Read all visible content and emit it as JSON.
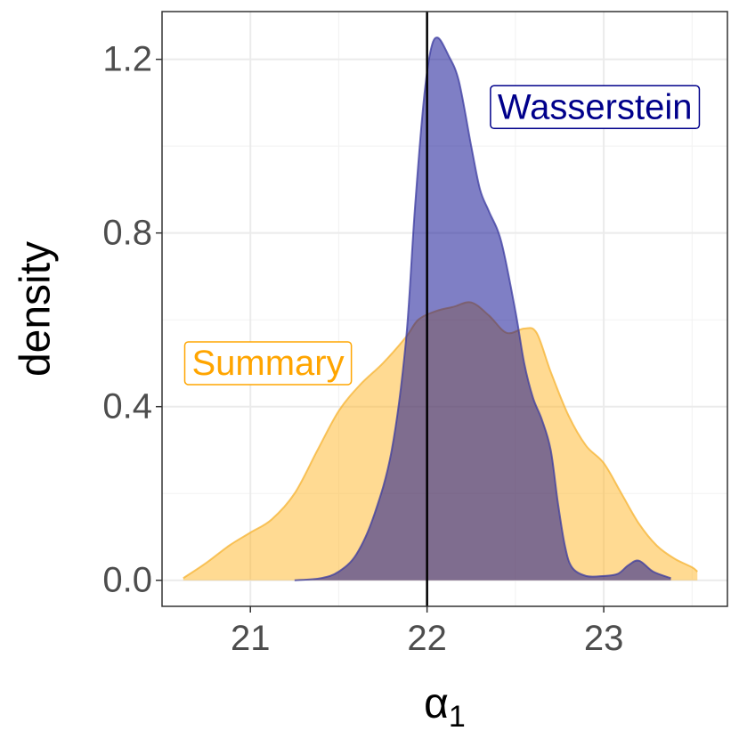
{
  "chart_data": {
    "type": "area",
    "xlabel": "α",
    "xlabel_subscript": "1",
    "ylabel": "density",
    "xlim": [
      20.5,
      23.7
    ],
    "ylim": [
      -0.06,
      1.31
    ],
    "x_ticks": [
      21,
      22,
      23
    ],
    "x_tick_labels": [
      "21",
      "22",
      "23"
    ],
    "y_ticks": [
      0.0,
      0.4,
      0.8,
      1.2
    ],
    "y_tick_labels": [
      "0.0",
      "0.4",
      "0.8",
      "1.2"
    ],
    "grid": true,
    "vline": 22.0,
    "series": [
      {
        "name": "Summary",
        "fill": "#FFB625",
        "stroke": "#F5B331",
        "label_color": "#FFA500",
        "label_at": [
          21.1,
          0.5
        ],
        "x": [
          20.62,
          20.75,
          20.88,
          21.0,
          21.12,
          21.25,
          21.38,
          21.5,
          21.62,
          21.75,
          21.88,
          21.95,
          22.05,
          22.15,
          22.25,
          22.35,
          22.45,
          22.55,
          22.62,
          22.7,
          22.8,
          22.9,
          23.0,
          23.1,
          23.2,
          23.3,
          23.4,
          23.5,
          23.53
        ],
        "y": [
          0.005,
          0.04,
          0.08,
          0.11,
          0.14,
          0.2,
          0.3,
          0.39,
          0.45,
          0.5,
          0.56,
          0.6,
          0.62,
          0.63,
          0.64,
          0.61,
          0.57,
          0.58,
          0.57,
          0.48,
          0.38,
          0.31,
          0.27,
          0.2,
          0.13,
          0.08,
          0.05,
          0.03,
          0.02
        ]
      },
      {
        "name": "Wasserstein",
        "fill": "#00008B",
        "stroke": "#3C3CA0",
        "label_color": "#00008B",
        "label_at": [
          22.95,
          1.09
        ],
        "x": [
          21.25,
          21.4,
          21.5,
          21.6,
          21.7,
          21.8,
          21.88,
          21.93,
          21.98,
          22.02,
          22.06,
          22.12,
          22.18,
          22.25,
          22.3,
          22.35,
          22.42,
          22.5,
          22.55,
          22.6,
          22.65,
          22.7,
          22.74,
          22.78,
          22.82,
          22.9,
          23.0,
          23.08,
          23.14,
          23.2,
          23.28,
          23.38
        ],
        "y": [
          0.0,
          0.005,
          0.02,
          0.06,
          0.15,
          0.3,
          0.55,
          0.85,
          1.1,
          1.22,
          1.25,
          1.21,
          1.15,
          1.0,
          0.9,
          0.85,
          0.78,
          0.62,
          0.5,
          0.42,
          0.37,
          0.3,
          0.18,
          0.08,
          0.03,
          0.01,
          0.01,
          0.015,
          0.035,
          0.045,
          0.02,
          0.005
        ]
      }
    ]
  }
}
